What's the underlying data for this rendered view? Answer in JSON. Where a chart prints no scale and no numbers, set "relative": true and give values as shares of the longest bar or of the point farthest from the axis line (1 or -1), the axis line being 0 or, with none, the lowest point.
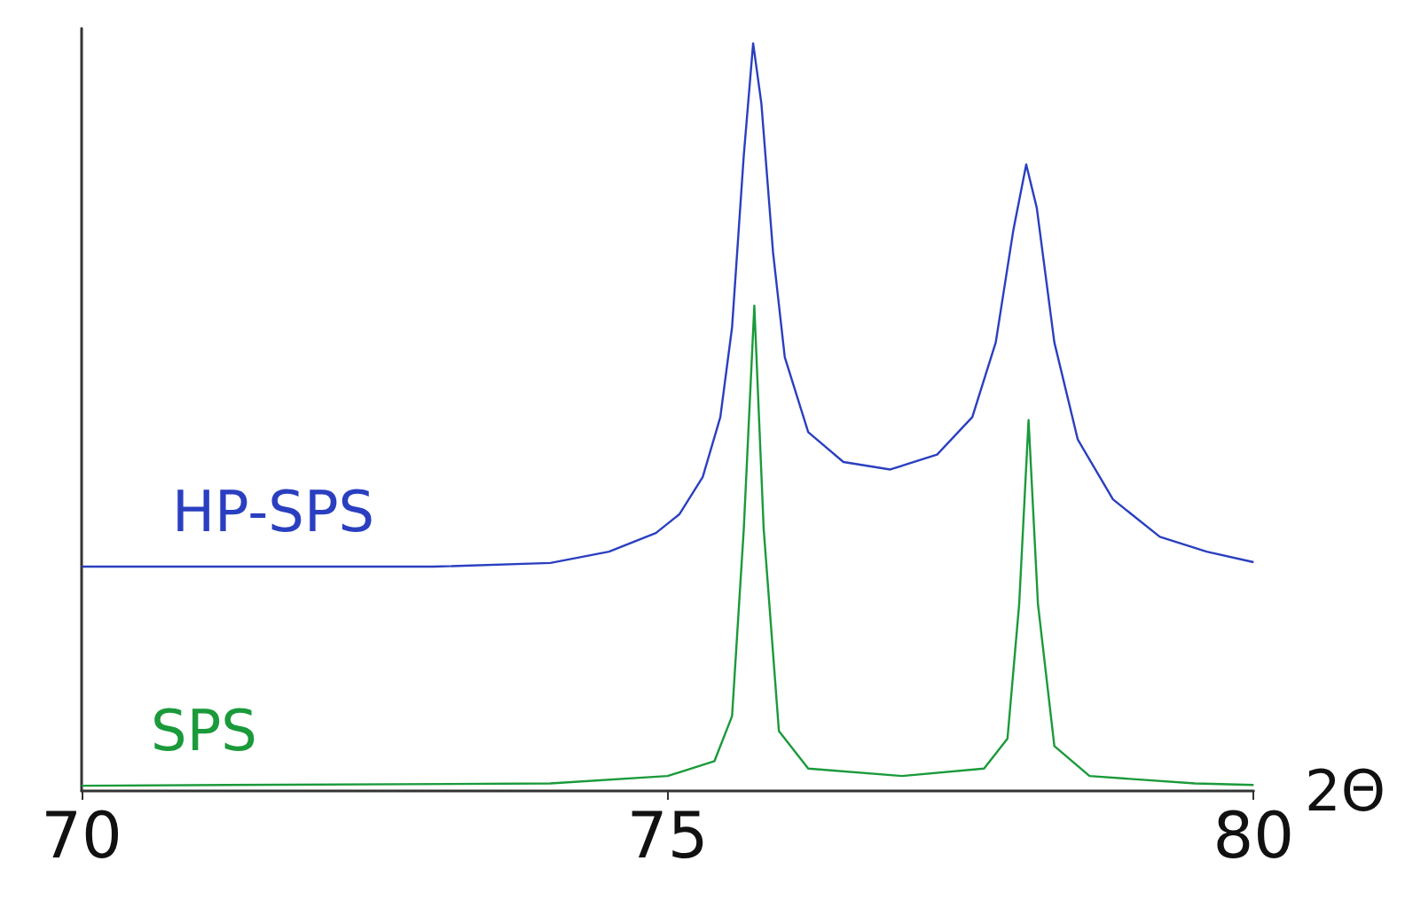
{
  "chart_data": {
    "type": "line",
    "relative": true,
    "xlabel": "2Θ",
    "xlim": [
      70,
      80
    ],
    "xticks": [
      70,
      75,
      80
    ],
    "grid": false,
    "legend": false,
    "marker": "none",
    "line_style": "solid",
    "series": [
      {
        "name": "HP-SPS",
        "color": "#2a3fc0",
        "x": [
          70,
          71,
          72,
          73,
          74,
          74.5,
          74.9,
          75.1,
          75.3,
          75.45,
          75.55,
          75.65,
          75.73,
          75.8,
          75.9,
          76,
          76.2,
          76.5,
          76.9,
          77.3,
          77.6,
          77.8,
          77.95,
          78.06,
          78.15,
          78.3,
          78.5,
          78.8,
          79.2,
          79.6,
          80
        ],
        "values": [
          0.3,
          0.3,
          0.3,
          0.3,
          0.305,
          0.32,
          0.345,
          0.37,
          0.42,
          0.5,
          0.62,
          0.85,
          1,
          0.92,
          0.72,
          0.58,
          0.48,
          0.44,
          0.43,
          0.45,
          0.5,
          0.6,
          0.75,
          0.838,
          0.78,
          0.6,
          0.47,
          0.39,
          0.34,
          0.32,
          0.306
        ]
      },
      {
        "name": "SPS",
        "color": "#1a9a3a",
        "x": [
          70,
          74,
          75,
          75.4,
          75.55,
          75.65,
          75.74,
          75.82,
          75.95,
          76.2,
          77,
          77.7,
          77.9,
          78,
          78.08,
          78.16,
          78.3,
          78.6,
          79.5,
          80
        ],
        "values": [
          0.007,
          0.01,
          0.02,
          0.04,
          0.1,
          0.35,
          0.649,
          0.35,
          0.08,
          0.03,
          0.02,
          0.03,
          0.07,
          0.25,
          0.496,
          0.25,
          0.06,
          0.02,
          0.01,
          0.008
        ]
      }
    ]
  }
}
